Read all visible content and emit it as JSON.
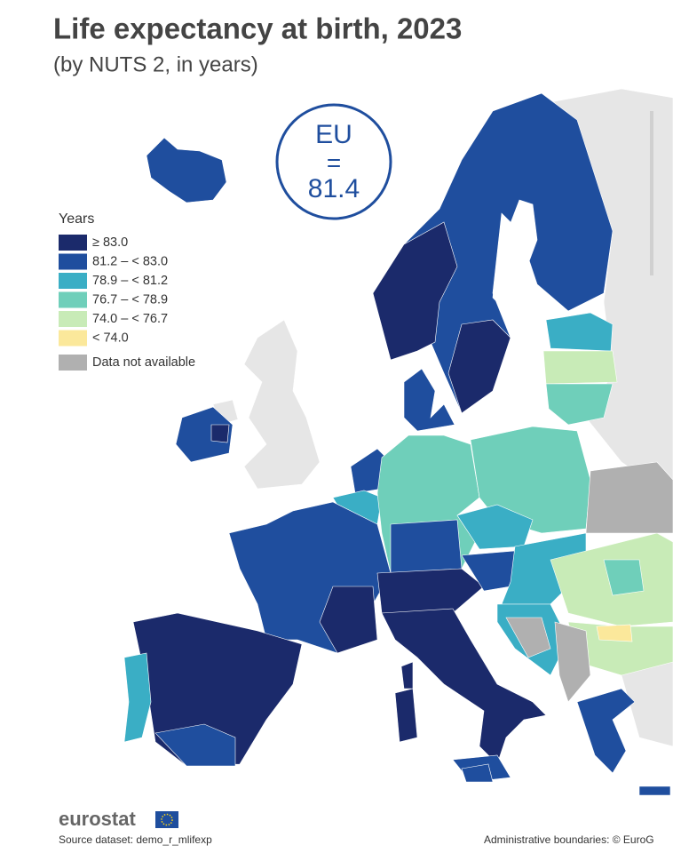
{
  "header": {
    "title": "Life expectancy at birth, 2023",
    "subtitle": "(by NUTS 2, in years)"
  },
  "badge": {
    "label": "EU",
    "symbol": "=",
    "value": 81.4
  },
  "legend": {
    "title": "Years",
    "items": [
      {
        "label": "≥ 83.0",
        "color": "#1b2a6b"
      },
      {
        "label": "81.2 – < 83.0",
        "color": "#1f4e9e"
      },
      {
        "label": "78.9 – < 81.2",
        "color": "#3aaec5"
      },
      {
        "label": "76.7 – < 78.9",
        "color": "#6fcfba"
      },
      {
        "label": "74.0 – < 76.7",
        "color": "#c8ebb7"
      },
      {
        "label": "< 74.0",
        "color": "#fbe89b"
      },
      {
        "label": "Data not available",
        "color": "#b0b0b0"
      }
    ]
  },
  "footer": {
    "brand": "eurostat",
    "source": "Source dataset: demo_r_mlifexp",
    "credit": "Administrative boundaries: © EuroG"
  }
}
